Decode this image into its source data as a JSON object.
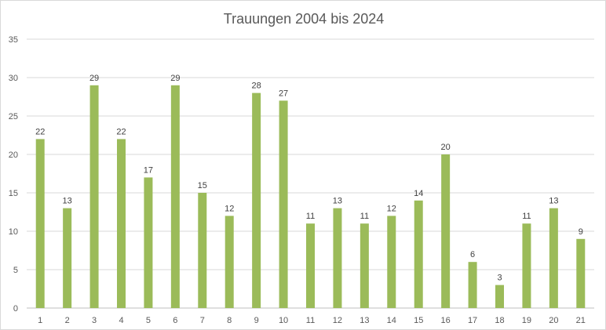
{
  "chart_data": {
    "type": "bar",
    "title": "Trauungen 2004 bis 2024",
    "xlabel": "",
    "ylabel": "",
    "categories": [
      "1",
      "2",
      "3",
      "4",
      "5",
      "6",
      "7",
      "8",
      "9",
      "10",
      "11",
      "12",
      "13",
      "14",
      "15",
      "16",
      "17",
      "18",
      "19",
      "20",
      "21"
    ],
    "values": [
      22,
      13,
      29,
      22,
      17,
      29,
      15,
      12,
      28,
      27,
      11,
      13,
      11,
      12,
      14,
      20,
      6,
      3,
      11,
      13,
      9
    ],
    "ylim": [
      0,
      35
    ],
    "yticks": [
      0,
      5,
      10,
      15,
      20,
      25,
      30,
      35
    ],
    "grid": true,
    "legend": "none",
    "bar_color": "#9bbb59",
    "data_labels": true
  }
}
